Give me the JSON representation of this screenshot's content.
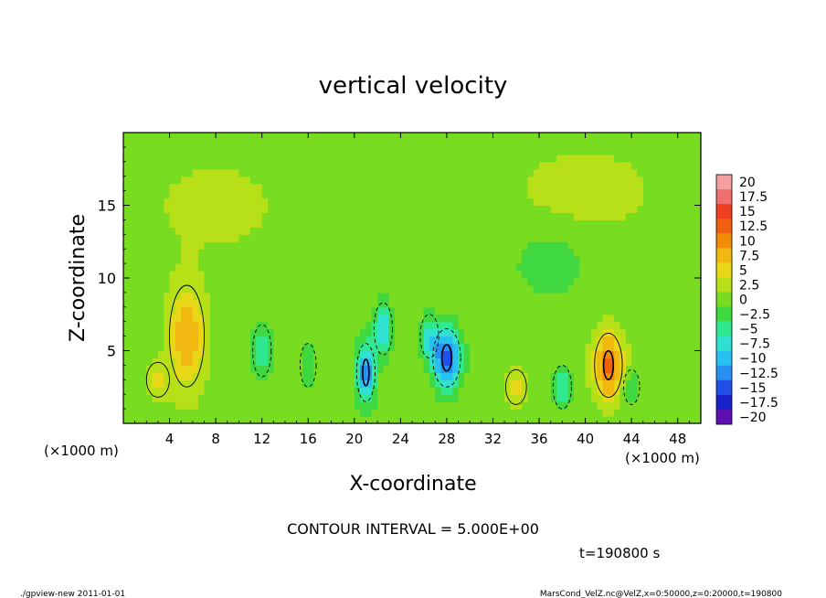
{
  "chart_data": {
    "type": "heatmap",
    "title": "vertical velocity",
    "xlabel": "X-coordinate",
    "ylabel": "Z-coordinate",
    "x_unit": "(×1000 m)",
    "y_unit": "(×1000 m)",
    "xlim": [
      0,
      50
    ],
    "ylim": [
      0,
      20
    ],
    "x_ticks": [
      "4",
      "8",
      "12",
      "16",
      "20",
      "24",
      "28",
      "32",
      "36",
      "40",
      "44",
      "48"
    ],
    "y_ticks": [
      "5",
      "10",
      "15"
    ],
    "contour_interval_label": "CONTOUR INTERVAL = 5.000E+00",
    "time_label": "t=190800 s",
    "colorbar_levels": [
      "20",
      "17.5",
      "15",
      "12.5",
      "10",
      "7.5",
      "5",
      "2.5",
      "0",
      "−2.5",
      "−5",
      "−7.5",
      "−10",
      "−12.5",
      "−15",
      "−17.5",
      "−20"
    ],
    "colorbar_colors": [
      "#f4a0a0",
      "#f07070",
      "#ee4020",
      "#f06010",
      "#f08c08",
      "#f0b810",
      "#e8d818",
      "#b8e018",
      "#78dc20",
      "#40d840",
      "#30e890",
      "#30e0d0",
      "#28c0f0",
      "#2890f0",
      "#2050e8",
      "#1820c8",
      "#6010b0"
    ],
    "features": [
      {
        "x": 5.5,
        "z": 6.0,
        "sx": 1.5,
        "sz": 3.5,
        "value": 8
      },
      {
        "x": 3.0,
        "z": 3.0,
        "sx": 1.0,
        "sz": 1.2,
        "value": 4
      },
      {
        "x": 12.0,
        "z": 5.0,
        "sx": 0.8,
        "sz": 1.8,
        "value": -7
      },
      {
        "x": 16.0,
        "z": 4.0,
        "sx": 0.7,
        "sz": 1.5,
        "value": -4
      },
      {
        "x": 21.0,
        "z": 3.5,
        "sx": 0.8,
        "sz": 2.0,
        "value": -14
      },
      {
        "x": 22.5,
        "z": 6.5,
        "sx": 0.8,
        "sz": 1.8,
        "value": -9
      },
      {
        "x": 28.0,
        "z": 4.5,
        "sx": 1.2,
        "sz": 2.0,
        "value": -16
      },
      {
        "x": 26.5,
        "z": 6.0,
        "sx": 0.8,
        "sz": 1.5,
        "value": -7
      },
      {
        "x": 34.0,
        "z": 2.5,
        "sx": 0.9,
        "sz": 1.2,
        "value": 5
      },
      {
        "x": 38.0,
        "z": 2.5,
        "sx": 0.8,
        "sz": 1.5,
        "value": -6
      },
      {
        "x": 42.0,
        "z": 4.0,
        "sx": 1.2,
        "sz": 2.2,
        "value": 12
      },
      {
        "x": 44.0,
        "z": 2.5,
        "sx": 0.7,
        "sz": 1.2,
        "value": -4
      },
      {
        "x": 37.0,
        "z": 11.0,
        "sx": 3.5,
        "sz": 2.5,
        "value": -3
      },
      {
        "x": 8.0,
        "z": 15.0,
        "sx": 5.0,
        "sz": 3.0,
        "value": 2
      },
      {
        "x": 40.0,
        "z": 16.0,
        "sx": 6.0,
        "sz": 3.0,
        "value": 2
      }
    ],
    "grid": false,
    "legend": "right colorbar"
  },
  "footer": {
    "left": "./gpview-new 2011-01-01",
    "right": "MarsCond_VelZ.nc@VelZ,x=0:50000,z=0:20000,t=190800"
  }
}
